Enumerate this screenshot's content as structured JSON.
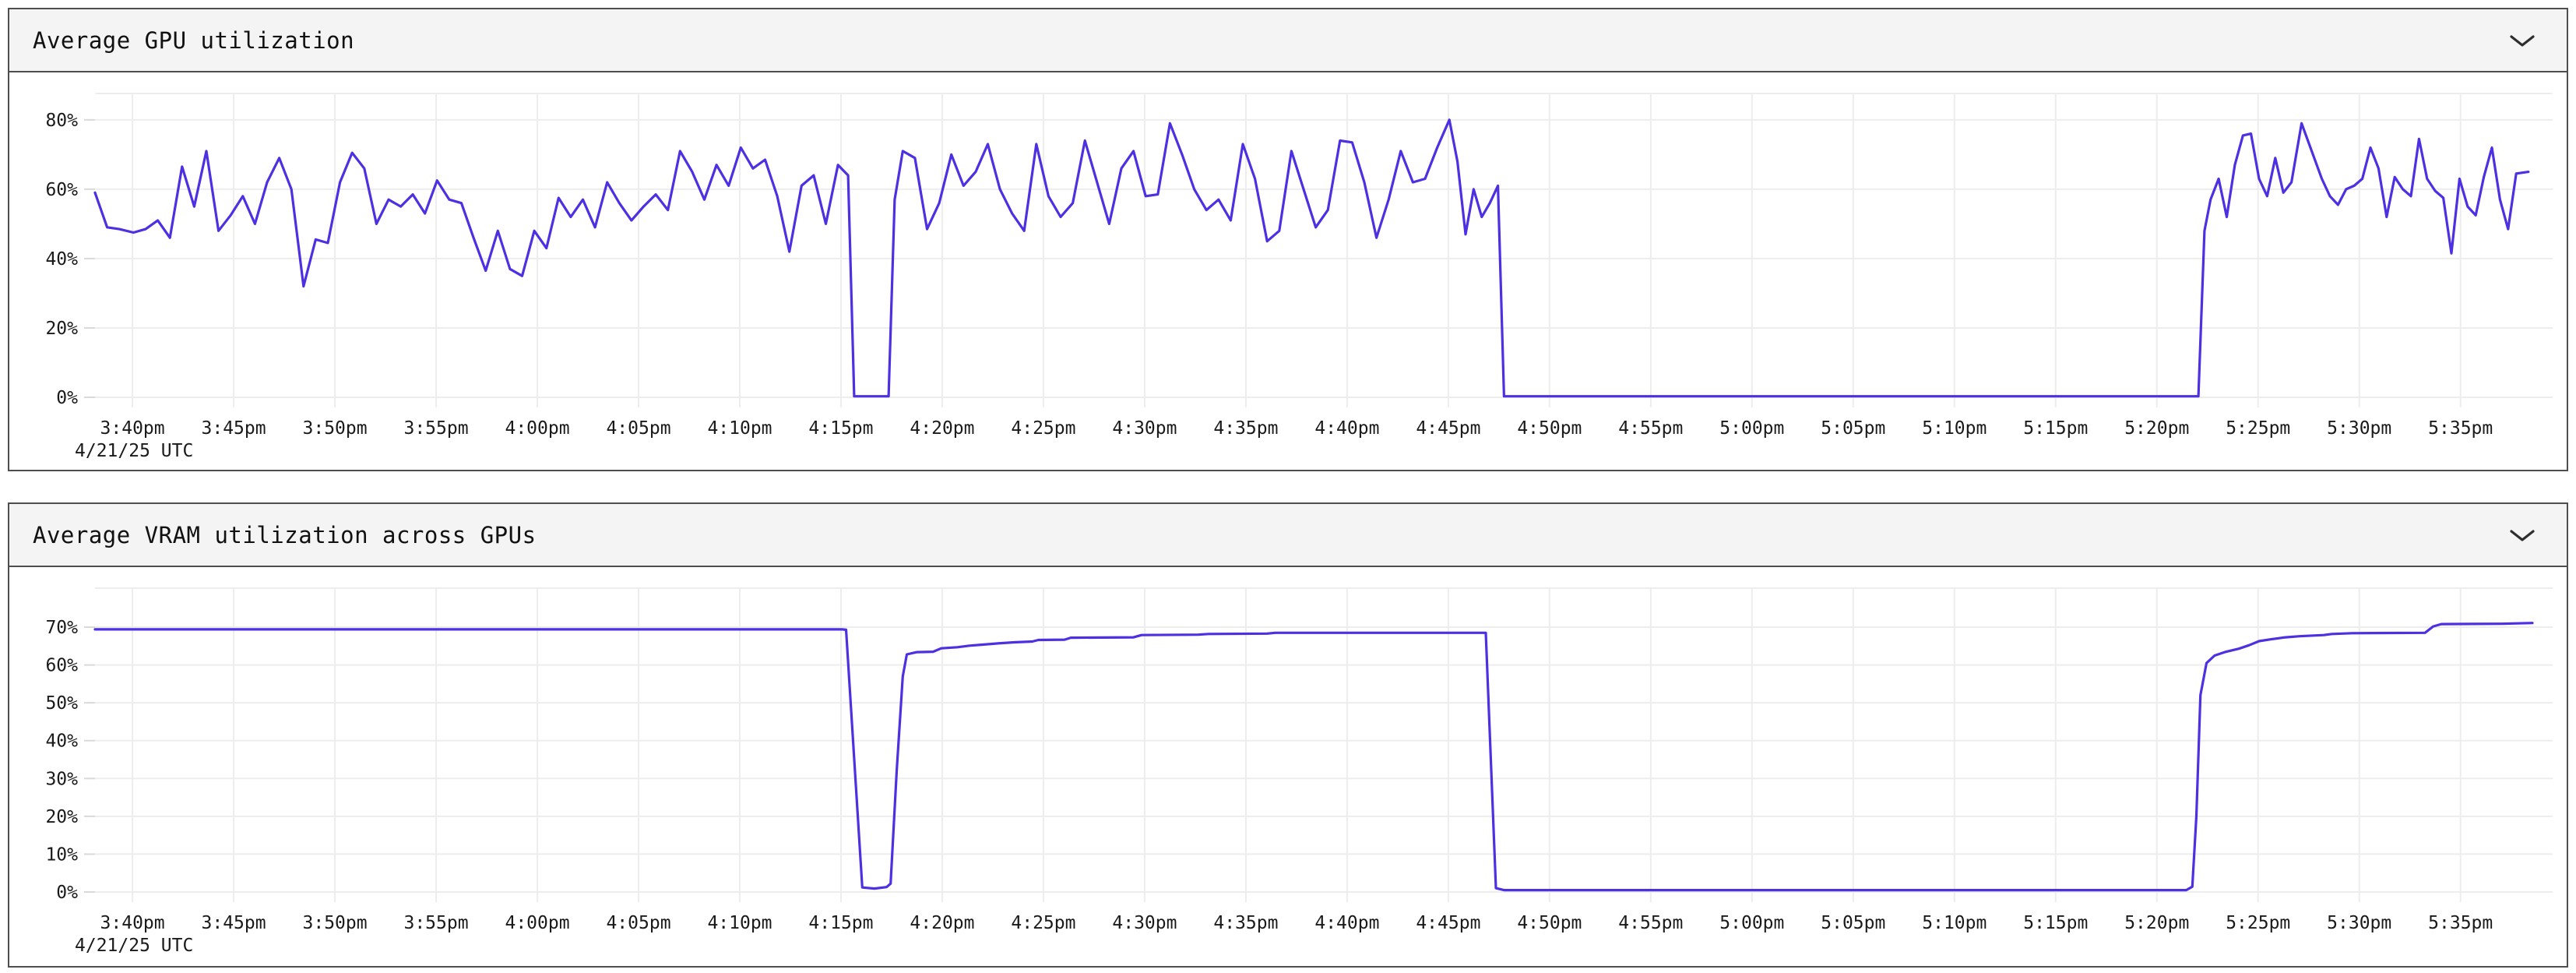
{
  "colors": {
    "line": "#4c30e2",
    "grid": "#ededed",
    "tick_mark": "#d9d9d9",
    "axis_text": "#1a1a1a",
    "header_bg": "#f4f4f4",
    "panel_border": "#4e4e4e",
    "title_text": "#111111",
    "chevron": "#2e2e2e",
    "page_bg": "#ffffff"
  },
  "x_axis": {
    "tick_labels": [
      "3:40pm",
      "3:45pm",
      "3:50pm",
      "3:55pm",
      "4:00pm",
      "4:05pm",
      "4:10pm",
      "4:15pm",
      "4:20pm",
      "4:25pm",
      "4:30pm",
      "4:35pm",
      "4:40pm",
      "4:45pm",
      "4:50pm",
      "4:55pm",
      "5:00pm",
      "5:05pm",
      "5:10pm",
      "5:15pm",
      "5:20pm",
      "5:25pm",
      "5:30pm",
      "5:35pm"
    ],
    "date_label": "4/21/25 UTC",
    "tick_first_min": 1.85,
    "tick_step_min": 5,
    "range_min": 121.4
  },
  "chart_data": [
    {
      "type": "line",
      "title": "Average GPU utilization",
      "unit": "%",
      "legend": "none",
      "grid": "on",
      "y_grid": [
        0,
        20,
        40,
        60,
        80
      ],
      "y_grid_labels": [
        "0%",
        "20%",
        "40%",
        "60%",
        "80%"
      ],
      "y_top": 87.6,
      "ylim": [
        0,
        87.6
      ],
      "points": [
        [
          0,
          59
        ],
        [
          0.6,
          49
        ],
        [
          1.2,
          48.5
        ],
        [
          1.9,
          47.5
        ],
        [
          2.5,
          48.5
        ],
        [
          3.1,
          51
        ],
        [
          3.7,
          46
        ],
        [
          4.3,
          66.5
        ],
        [
          4.9,
          55
        ],
        [
          5.5,
          71
        ],
        [
          6.1,
          48
        ],
        [
          6.7,
          52.5
        ],
        [
          7.3,
          58
        ],
        [
          7.9,
          50
        ],
        [
          8.5,
          62
        ],
        [
          9.1,
          69
        ],
        [
          9.7,
          60
        ],
        [
          10.3,
          32
        ],
        [
          10.9,
          45.5
        ],
        [
          11.5,
          44.5
        ],
        [
          12.1,
          62
        ],
        [
          12.7,
          70.5
        ],
        [
          13.3,
          66
        ],
        [
          13.9,
          50
        ],
        [
          14.5,
          57
        ],
        [
          15.1,
          55
        ],
        [
          15.7,
          58.5
        ],
        [
          16.3,
          53
        ],
        [
          16.9,
          62.5
        ],
        [
          17.5,
          57
        ],
        [
          18.1,
          56
        ],
        [
          18.7,
          46
        ],
        [
          19.3,
          36.5
        ],
        [
          19.9,
          48
        ],
        [
          20.5,
          37
        ],
        [
          21.1,
          35
        ],
        [
          21.7,
          48
        ],
        [
          22.3,
          43
        ],
        [
          22.9,
          57.5
        ],
        [
          23.5,
          52
        ],
        [
          24.1,
          57
        ],
        [
          24.7,
          49
        ],
        [
          25.3,
          62
        ],
        [
          25.9,
          56
        ],
        [
          26.5,
          51
        ],
        [
          27.1,
          55
        ],
        [
          27.7,
          58.5
        ],
        [
          28.3,
          54
        ],
        [
          28.9,
          71
        ],
        [
          29.5,
          65
        ],
        [
          30.1,
          57
        ],
        [
          30.7,
          67
        ],
        [
          31.3,
          61
        ],
        [
          31.9,
          72
        ],
        [
          32.5,
          66
        ],
        [
          33.1,
          68.5
        ],
        [
          33.7,
          58
        ],
        [
          34.3,
          42
        ],
        [
          34.9,
          61
        ],
        [
          35.5,
          64
        ],
        [
          36.1,
          50
        ],
        [
          36.7,
          67
        ],
        [
          37.2,
          64
        ],
        [
          37.5,
          0.3
        ],
        [
          39.2,
          0.3
        ],
        [
          39.5,
          57
        ],
        [
          39.9,
          71
        ],
        [
          40.5,
          69
        ],
        [
          41.1,
          48.5
        ],
        [
          41.7,
          56
        ],
        [
          42.3,
          70
        ],
        [
          42.9,
          61
        ],
        [
          43.5,
          65
        ],
        [
          44.1,
          73
        ],
        [
          44.7,
          60
        ],
        [
          45.3,
          53
        ],
        [
          45.9,
          48
        ],
        [
          46.5,
          73
        ],
        [
          47.1,
          58
        ],
        [
          47.7,
          52
        ],
        [
          48.3,
          56
        ],
        [
          48.9,
          74
        ],
        [
          49.5,
          62
        ],
        [
          50.1,
          50
        ],
        [
          50.7,
          66
        ],
        [
          51.3,
          71
        ],
        [
          51.9,
          58
        ],
        [
          52.5,
          58.5
        ],
        [
          53.1,
          79
        ],
        [
          53.7,
          70
        ],
        [
          54.3,
          60
        ],
        [
          54.9,
          54
        ],
        [
          55.5,
          57
        ],
        [
          56.1,
          51
        ],
        [
          56.7,
          73
        ],
        [
          57.3,
          63
        ],
        [
          57.9,
          45
        ],
        [
          58.5,
          48
        ],
        [
          59.1,
          71
        ],
        [
          59.7,
          60
        ],
        [
          60.3,
          49
        ],
        [
          60.9,
          54
        ],
        [
          61.5,
          74
        ],
        [
          62.1,
          73.5
        ],
        [
          62.7,
          62
        ],
        [
          63.3,
          46
        ],
        [
          63.9,
          57
        ],
        [
          64.5,
          71
        ],
        [
          65.1,
          62
        ],
        [
          65.7,
          63
        ],
        [
          66.3,
          72
        ],
        [
          66.9,
          80
        ],
        [
          67.3,
          68
        ],
        [
          67.7,
          47
        ],
        [
          68.1,
          60
        ],
        [
          68.5,
          52
        ],
        [
          68.9,
          56
        ],
        [
          69.3,
          61
        ],
        [
          69.6,
          0.3
        ],
        [
          103.9,
          0.3
        ],
        [
          104.2,
          48
        ],
        [
          104.5,
          57
        ],
        [
          104.9,
          63
        ],
        [
          105.3,
          52
        ],
        [
          105.7,
          67
        ],
        [
          106.1,
          75.5
        ],
        [
          106.5,
          76
        ],
        [
          106.9,
          63
        ],
        [
          107.3,
          58
        ],
        [
          107.7,
          69
        ],
        [
          108.1,
          59
        ],
        [
          108.5,
          62
        ],
        [
          109,
          79
        ],
        [
          109.5,
          71
        ],
        [
          110,
          63
        ],
        [
          110.4,
          58
        ],
        [
          110.8,
          55.5
        ],
        [
          111.2,
          60
        ],
        [
          111.6,
          61
        ],
        [
          112,
          63
        ],
        [
          112.4,
          72
        ],
        [
          112.8,
          66
        ],
        [
          113.2,
          52
        ],
        [
          113.6,
          63.5
        ],
        [
          114,
          60
        ],
        [
          114.4,
          58
        ],
        [
          114.8,
          74.5
        ],
        [
          115.2,
          63
        ],
        [
          115.6,
          59.5
        ],
        [
          116,
          57.5
        ],
        [
          116.4,
          41.5
        ],
        [
          116.8,
          63
        ],
        [
          117.2,
          55
        ],
        [
          117.6,
          52.5
        ],
        [
          118,
          63.5
        ],
        [
          118.4,
          72
        ],
        [
          118.8,
          57
        ],
        [
          119.2,
          48.5
        ],
        [
          119.6,
          64.5
        ],
        [
          120.2,
          65
        ]
      ]
    },
    {
      "type": "line",
      "title": "Average VRAM utilization across GPUs",
      "unit": "%",
      "legend": "none",
      "grid": "on",
      "y_grid": [
        0,
        10,
        20,
        30,
        40,
        50,
        60,
        70
      ],
      "y_grid_labels": [
        "0%",
        "10%",
        "20%",
        "30%",
        "40%",
        "50%",
        "60%",
        "70%"
      ],
      "y_top": 80.3,
      "ylim": [
        0,
        80.3
      ],
      "points": [
        [
          0,
          69.4
        ],
        [
          36.9,
          69.4
        ],
        [
          37.1,
          69.3
        ],
        [
          37.9,
          1.2
        ],
        [
          38.5,
          0.9
        ],
        [
          39.1,
          1.3
        ],
        [
          39.3,
          2.2
        ],
        [
          39.6,
          32
        ],
        [
          39.9,
          57
        ],
        [
          40.1,
          62.8
        ],
        [
          40.6,
          63.4
        ],
        [
          41.4,
          63.5
        ],
        [
          41.8,
          64.4
        ],
        [
          42.6,
          64.7
        ],
        [
          43.2,
          65.1
        ],
        [
          43.9,
          65.4
        ],
        [
          44.6,
          65.7
        ],
        [
          45.4,
          66
        ],
        [
          46.3,
          66.2
        ],
        [
          46.6,
          66.6
        ],
        [
          47.9,
          66.7
        ],
        [
          48.2,
          67.2
        ],
        [
          51.3,
          67.3
        ],
        [
          51.7,
          67.9
        ],
        [
          54.5,
          68
        ],
        [
          55,
          68.2
        ],
        [
          57.9,
          68.3
        ],
        [
          58.3,
          68.5
        ],
        [
          68.7,
          68.5
        ],
        [
          69.2,
          1
        ],
        [
          69.6,
          0.5
        ],
        [
          103.3,
          0.5
        ],
        [
          103.6,
          1.4
        ],
        [
          103.8,
          20
        ],
        [
          104,
          52
        ],
        [
          104.3,
          60.5
        ],
        [
          104.7,
          62.5
        ],
        [
          105.2,
          63.4
        ],
        [
          105.9,
          64.3
        ],
        [
          106.4,
          65.2
        ],
        [
          106.9,
          66.3
        ],
        [
          107.5,
          66.8
        ],
        [
          108.2,
          67.3
        ],
        [
          108.9,
          67.6
        ],
        [
          110.1,
          67.9
        ],
        [
          110.5,
          68.2
        ],
        [
          111.5,
          68.4
        ],
        [
          115.1,
          68.5
        ],
        [
          115.5,
          70.2
        ],
        [
          115.9,
          70.8
        ],
        [
          118.9,
          70.9
        ],
        [
          120.4,
          71.1
        ]
      ]
    }
  ]
}
